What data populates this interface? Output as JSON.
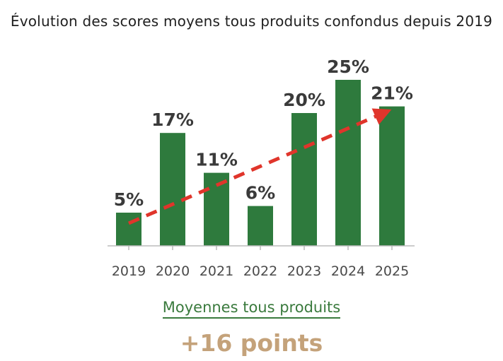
{
  "chart_data": {
    "type": "bar",
    "title": "Évolution des scores moyens tous produits confondus depuis 2019",
    "categories": [
      "2019",
      "2020",
      "2021",
      "2022",
      "2023",
      "2024",
      "2025"
    ],
    "values": [
      5,
      17,
      11,
      6,
      20,
      25,
      21
    ],
    "data_labels": [
      "5%",
      "17%",
      "11%",
      "6%",
      "20%",
      "25%",
      "21%"
    ],
    "unit": "%",
    "ylim": [
      0,
      25
    ],
    "grid": false,
    "trend_arrow": true,
    "colors": {
      "bar": "#2e7a3d",
      "trend": "#e0352b"
    }
  },
  "summary": {
    "label": "Moyennes tous produits",
    "value": "+16 points",
    "label_color": "#3a7a3d",
    "value_color": "#c4a27a"
  }
}
